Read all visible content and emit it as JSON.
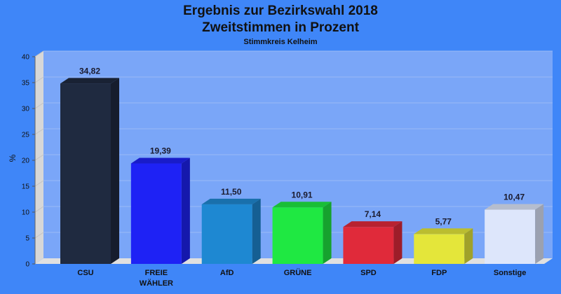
{
  "chart_data": {
    "type": "bar",
    "title": "Ergebnis zur Bezirkswahl 2018",
    "title_line2": "Zweitstimmen in Prozent",
    "subtitle": "Stimmkreis Kelheim",
    "ylabel": "%",
    "xlabel": "",
    "ylim": [
      0,
      40
    ],
    "yticks": [
      0,
      5,
      10,
      15,
      20,
      25,
      30,
      35,
      40
    ],
    "grid": true,
    "categories": [
      "CSU",
      "FREIE WÄHLER",
      "AfD",
      "GRÜNE",
      "SPD",
      "FDP",
      "Sonstige"
    ],
    "category_lines": [
      [
        "CSU"
      ],
      [
        "FREIE",
        "WÄHLER"
      ],
      [
        "AfD"
      ],
      [
        "GRÜNE"
      ],
      [
        "SPD"
      ],
      [
        "FDP"
      ],
      [
        "Sonstige"
      ]
    ],
    "values": [
      34.82,
      19.39,
      11.5,
      10.91,
      7.14,
      5.77,
      10.47
    ],
    "value_labels": [
      "34,82",
      "19,39",
      "11,50",
      "10,91",
      "7,14",
      "5,77",
      "10,47"
    ],
    "colors": [
      "#1f2a40",
      "#1e22f5",
      "#1e88d2",
      "#1fe842",
      "#e02a3a",
      "#e4e63a",
      "#dde6fb"
    ]
  }
}
